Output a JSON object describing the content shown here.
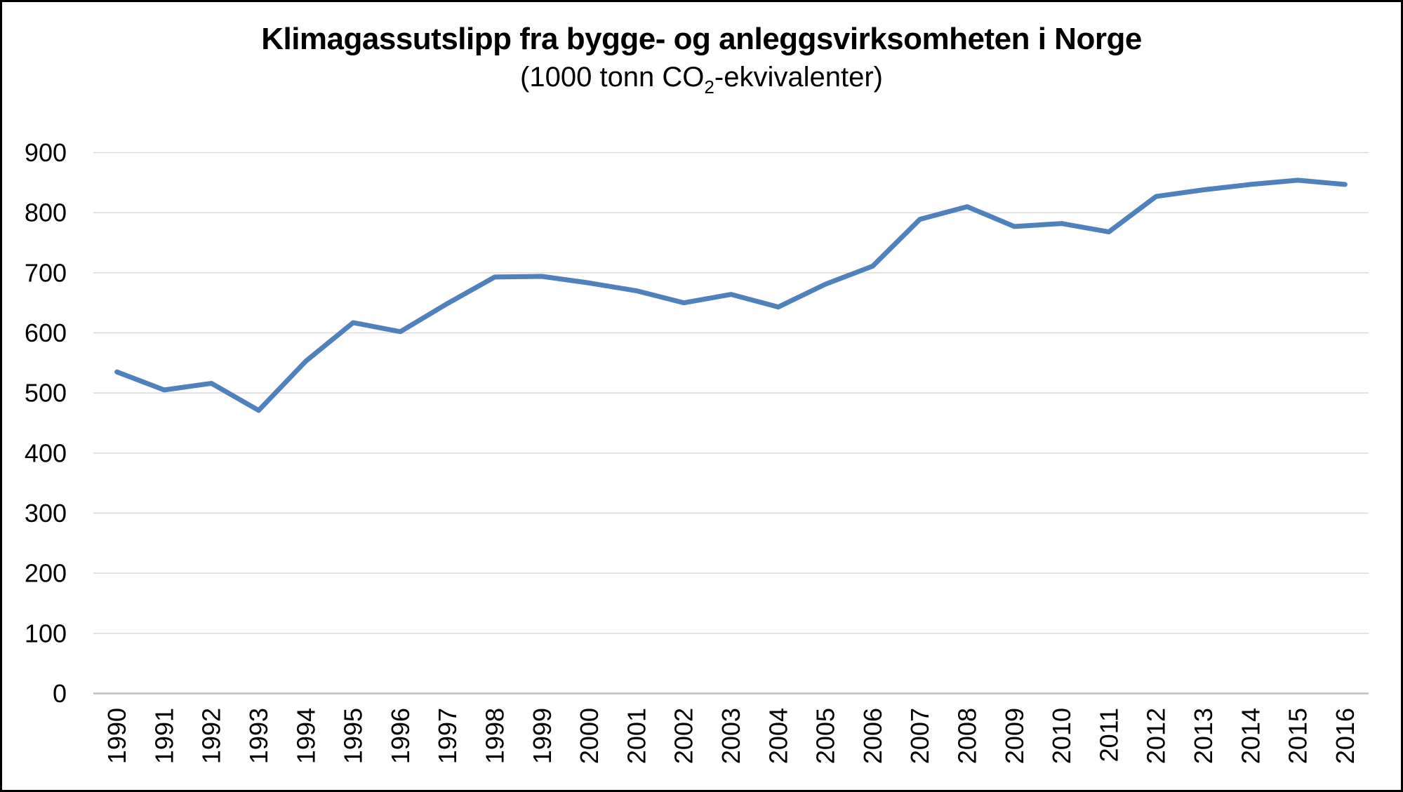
{
  "page": {
    "background": "#FFFFFF",
    "frame_border_color": "#000000"
  },
  "chart": {
    "title": "Klimagassutslipp fra bygge- og anleggsvirksomheten i Norge",
    "subtitle_prefix": "(1000 tonn CO",
    "subtitle_sub": "2",
    "subtitle_suffix": "-ekvivalenter)"
  },
  "chart_data": {
    "type": "line",
    "title": "Klimagassutslipp fra bygge- og anleggsvirksomheten i Norge",
    "subtitle": "(1000 tonn CO2-ekvivalenter)",
    "xlabel": "",
    "ylabel": "",
    "categories": [
      1990,
      1991,
      1992,
      1993,
      1994,
      1995,
      1996,
      1997,
      1998,
      1999,
      2000,
      2001,
      2002,
      2003,
      2004,
      2005,
      2006,
      2007,
      2008,
      2009,
      2010,
      2011,
      2012,
      2013,
      2014,
      2015,
      2016
    ],
    "values": [
      535,
      505,
      516,
      471,
      553,
      617,
      602,
      649,
      693,
      694,
      683,
      670,
      650,
      664,
      643,
      681,
      711,
      789,
      810,
      777,
      782,
      768,
      827,
      838,
      847,
      854,
      847
    ],
    "ylim": [
      0,
      900
    ],
    "y_ticks": [
      0,
      100,
      200,
      300,
      400,
      500,
      600,
      700,
      800,
      900
    ],
    "grid": "horizontal",
    "legend": "none",
    "line_color": "#4F81BD",
    "line_width": 7,
    "gridline_color": "#D9D9D9",
    "axis_line_color": "#BFBFBF",
    "tick_label_color": "#000000"
  }
}
